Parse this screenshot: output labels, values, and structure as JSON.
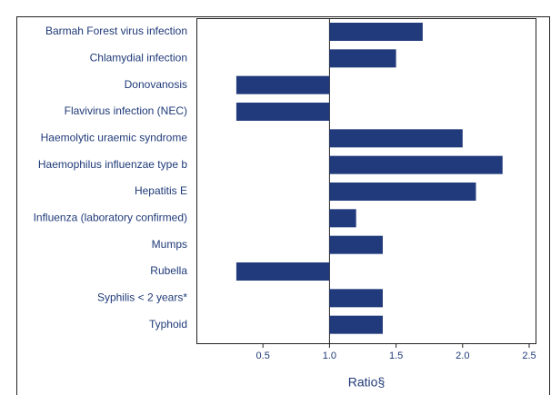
{
  "chart_data": {
    "type": "hbar",
    "x_label": "Ratio§",
    "categories": [
      "Barmah Forest virus infection",
      "Chlamydial infection",
      "Donovanosis",
      "Flavivirus infection (NEC)",
      "Haemolytic uraemic syndrome",
      "Haemophilus influenzae type b",
      "Hepatitis E",
      "Influenza (laboratory confirmed)",
      "Mumps",
      "Rubella",
      "Syphilis < 2 years*",
      "Typhoid"
    ],
    "values": [
      1.7,
      1.5,
      0.3,
      0.3,
      2.0,
      2.3,
      2.1,
      1.2,
      1.4,
      0.3,
      1.4,
      1.4
    ],
    "baseline": 1,
    "color": "#213a7b",
    "xlim": [
      0,
      2.5
    ],
    "xticks": [
      0.5,
      {
        "value": 1,
        "label": "1.0"
      },
      1.5,
      {
        "value": 2,
        "label": "2.0"
      },
      2.5
    ]
  }
}
